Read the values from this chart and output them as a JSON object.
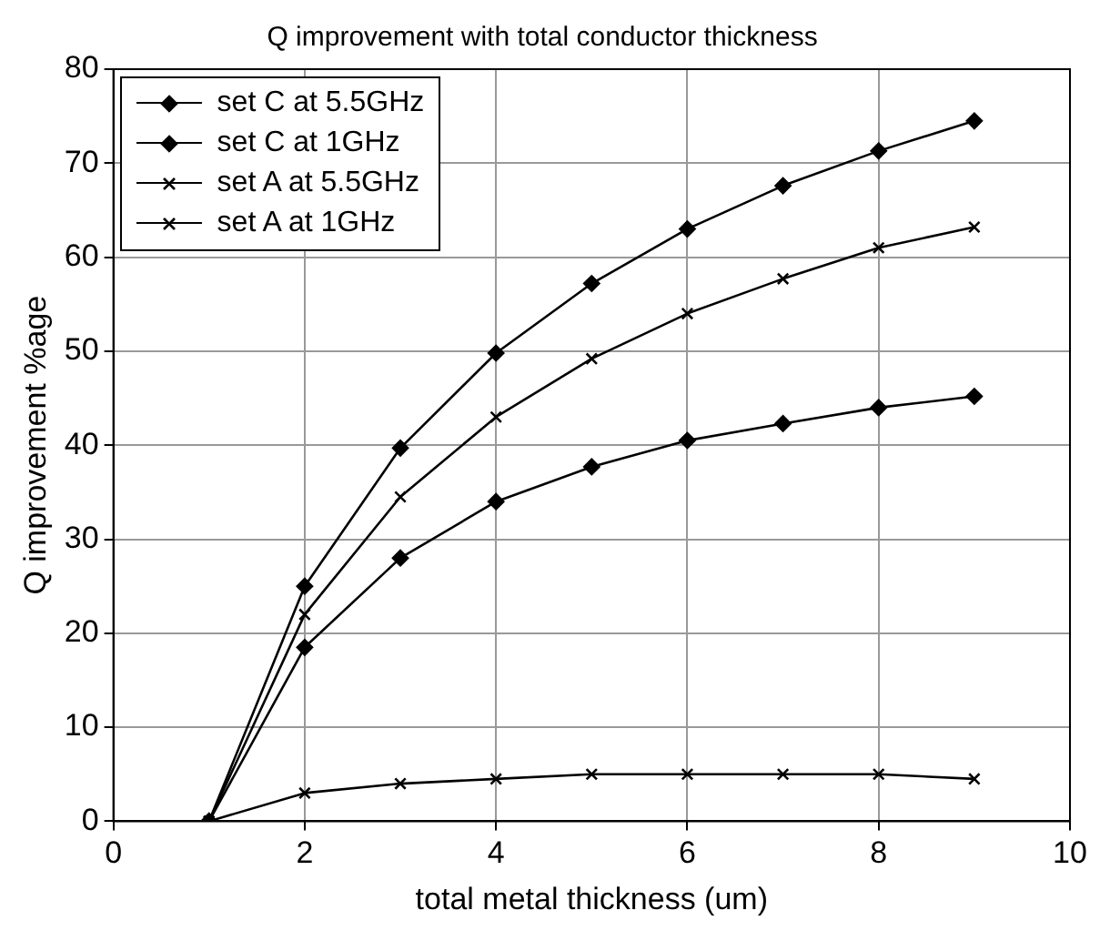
{
  "chart_data": {
    "type": "line",
    "title": "Q improvement with total conductor thickness",
    "xlabel": "total metal thickness (um)",
    "ylabel": "Q improvement %age",
    "x": [
      1,
      2,
      3,
      4,
      5,
      6,
      7,
      8,
      9
    ],
    "series": [
      {
        "name": "set C at 5.5GHz",
        "color": "#000000",
        "marker": "diamond",
        "values": [
          0,
          18.5,
          28,
          34,
          37.7,
          40.5,
          42.3,
          44,
          45.2
        ]
      },
      {
        "name": "set C at 1GHz",
        "color": "#000000",
        "marker": "diamond",
        "values": [
          0,
          25,
          39.7,
          49.8,
          57.2,
          63,
          67.6,
          71.3,
          74.5
        ]
      },
      {
        "name": "set A at 5.5GHz",
        "color": "#000000",
        "marker": "cross",
        "values": [
          0,
          22,
          34.5,
          43,
          49.2,
          54,
          57.7,
          61,
          63.2
        ]
      },
      {
        "name": "set A at 1GHz",
        "color": "#000000",
        "marker": "cross",
        "values": [
          0,
          3,
          4,
          4.5,
          5,
          5,
          5,
          5,
          4.5
        ]
      }
    ],
    "xlim": [
      0,
      10
    ],
    "xticks": [
      0,
      2,
      4,
      6,
      8,
      10
    ],
    "ylim": [
      0,
      80
    ],
    "yticks": [
      0,
      10,
      20,
      30,
      40,
      50,
      60,
      70,
      80
    ],
    "grid": true,
    "legend": "top left",
    "line_style": "solid"
  }
}
